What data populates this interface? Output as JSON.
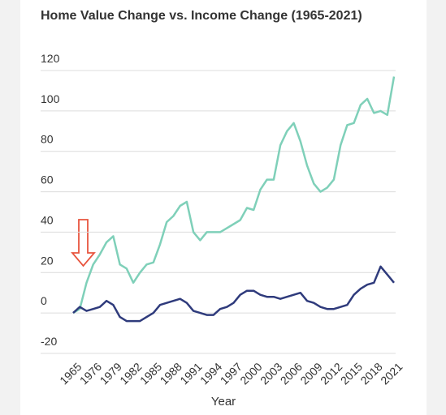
{
  "chart_data": {
    "type": "line",
    "title": "Home Value Change vs. Income Change (1965-2021)",
    "x_label": "Year",
    "categories": [
      "1965",
      null,
      null,
      "1976",
      null,
      null,
      "1979",
      null,
      null,
      "1982",
      null,
      null,
      "1985",
      null,
      null,
      "1988",
      null,
      null,
      "1991",
      null,
      null,
      "1994",
      null,
      null,
      "1997",
      null,
      null,
      "2000",
      null,
      null,
      "2003",
      null,
      null,
      "2006",
      null,
      null,
      "2009",
      null,
      null,
      "2012",
      null,
      null,
      "2015",
      null,
      null,
      "2018",
      null,
      null,
      "2021"
    ],
    "series": [
      {
        "name": "Home Value Change",
        "color": "#7fd0b9",
        "values": [
          0,
          2,
          15,
          24,
          29,
          35,
          38,
          24,
          22,
          15,
          20,
          24,
          25,
          34,
          45,
          48,
          53,
          55,
          40,
          36,
          40,
          40,
          40,
          42,
          44,
          46,
          52,
          51,
          61,
          66,
          66,
          83,
          90,
          94,
          85,
          73,
          64,
          60,
          62,
          66,
          83,
          93,
          94,
          103,
          106,
          99,
          100,
          98,
          117
        ]
      },
      {
        "name": "Income Change",
        "color": "#2f3b7c",
        "values": [
          0,
          3,
          1,
          2,
          3,
          6,
          4,
          -2,
          -4,
          -4,
          -4,
          -2,
          0,
          4,
          5,
          6,
          7,
          5,
          1,
          0,
          -1,
          -1,
          2,
          3,
          5,
          9,
          11,
          11,
          9,
          8,
          8,
          7,
          8,
          9,
          10,
          6,
          5,
          3,
          2,
          2,
          3,
          4,
          9,
          12,
          14,
          15,
          23,
          19,
          15
        ]
      }
    ],
    "ylim": [
      -20,
      120
    ],
    "yticks": [
      -20,
      0,
      20,
      40,
      60,
      80,
      100,
      120
    ],
    "grid": true
  }
}
